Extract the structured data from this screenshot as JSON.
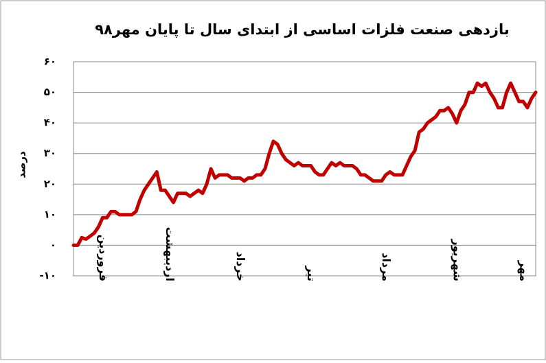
{
  "chart_data": {
    "type": "line",
    "title": "بازدهی صنعت فلزات اساسی از ابتدای سال تا پایان مهر۹۸",
    "y_label": "درصد",
    "categories": [
      null,
      null,
      null,
      null,
      null,
      null,
      null,
      "فروردین",
      null,
      null,
      null,
      null,
      null,
      null,
      null,
      null,
      null,
      null,
      null,
      null,
      null,
      null,
      null,
      "اردیبهشت",
      null,
      null,
      null,
      null,
      null,
      null,
      null,
      null,
      null,
      null,
      null,
      null,
      null,
      null,
      null,
      null,
      "خرداد",
      null,
      null,
      null,
      null,
      null,
      null,
      null,
      null,
      null,
      null,
      null,
      null,
      null,
      null,
      null,
      null,
      "تیر",
      null,
      null,
      null,
      null,
      null,
      null,
      null,
      null,
      null,
      null,
      null,
      null,
      null,
      null,
      null,
      null,
      null,
      "مرداد",
      null,
      null,
      null,
      null,
      null,
      null,
      null,
      null,
      null,
      null,
      null,
      null,
      null,
      null,
      null,
      null,
      "شهریور",
      null,
      null,
      null,
      null,
      null,
      null,
      null,
      null,
      null,
      null,
      null,
      null,
      null,
      null,
      null,
      "مهر",
      null,
      null,
      null
    ],
    "series": [
      {
        "color": "#c00000",
        "values": [
          0,
          0,
          2.5,
          2,
          3,
          4,
          6,
          9,
          9,
          11,
          11,
          10,
          10,
          10,
          10,
          11,
          15,
          18,
          20,
          22,
          24,
          18,
          18,
          16,
          14,
          17,
          17,
          17,
          16,
          17,
          18,
          17,
          20,
          25,
          22,
          23,
          23,
          23,
          22,
          22,
          22,
          21,
          22,
          22,
          23,
          23,
          25,
          30,
          34,
          33,
          30,
          28,
          27,
          26,
          27,
          26,
          26,
          26,
          24,
          23,
          23,
          25,
          27,
          26,
          27,
          26,
          26,
          26,
          25,
          23,
          23,
          22,
          21,
          21,
          21,
          23,
          24,
          23,
          23,
          23,
          26,
          29,
          31,
          37,
          38,
          40,
          41,
          42,
          44,
          44,
          45,
          43,
          40,
          44,
          46,
          50,
          50,
          53,
          52,
          53,
          50,
          48,
          45,
          45,
          50,
          53,
          50,
          47,
          47,
          45,
          48,
          50
        ]
      }
    ],
    "ylim": [
      -10,
      60
    ],
    "yticks": [
      {
        "value": -10,
        "label": "-۱۰"
      },
      {
        "value": 0,
        "label": "۰"
      },
      {
        "value": 10,
        "label": "۱۰"
      },
      {
        "value": 20,
        "label": "۲۰"
      },
      {
        "value": 30,
        "label": "۳۰"
      },
      {
        "value": 40,
        "label": "۴۰"
      },
      {
        "value": 50,
        "label": "۵۰"
      },
      {
        "value": 60,
        "label": "۶۰"
      }
    ],
    "grid": true
  }
}
